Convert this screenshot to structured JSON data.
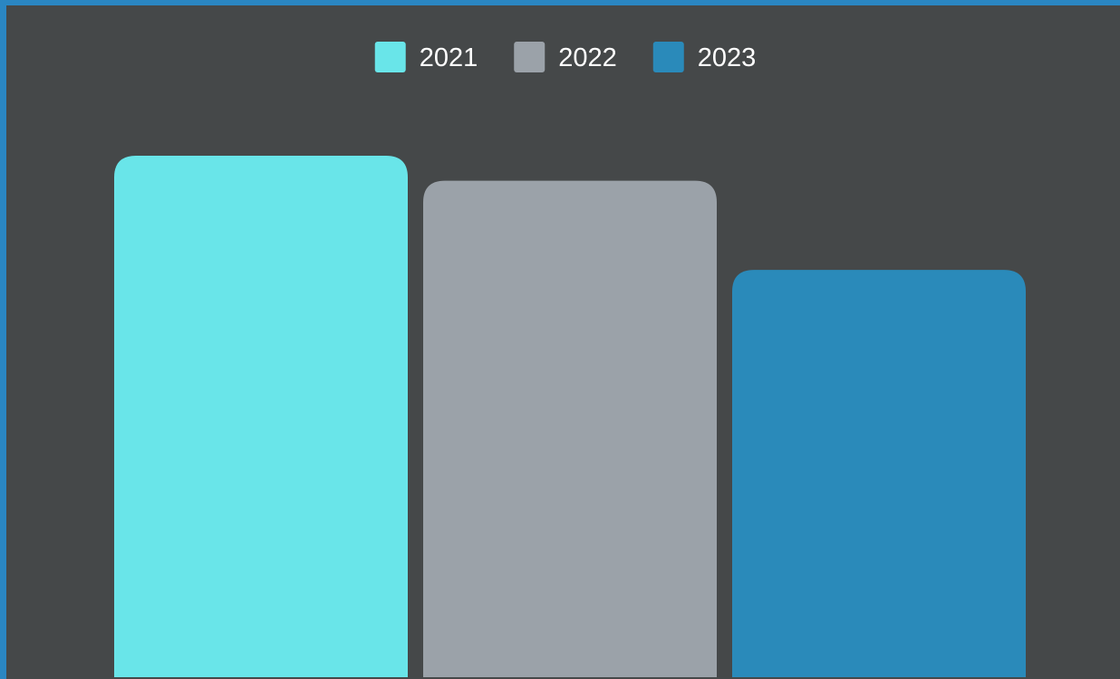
{
  "chart_data": {
    "type": "bar",
    "title": "",
    "xlabel": "",
    "ylabel": "",
    "categories": [
      ""
    ],
    "series": [
      {
        "name": "2021",
        "values": [
          100
        ],
        "color": "#69e5e9"
      },
      {
        "name": "2022",
        "values": [
          95.2
        ],
        "color": "#9ba2a9"
      },
      {
        "name": "2023",
        "values": [
          78.1
        ],
        "color": "#2a8aba"
      }
    ],
    "ylim": [
      0,
      100
    ],
    "grid": false,
    "legend_position": "top-center"
  },
  "theme": {
    "background": "#454849",
    "frame_color": "#2a86c2",
    "text_color": "#ffffff"
  }
}
